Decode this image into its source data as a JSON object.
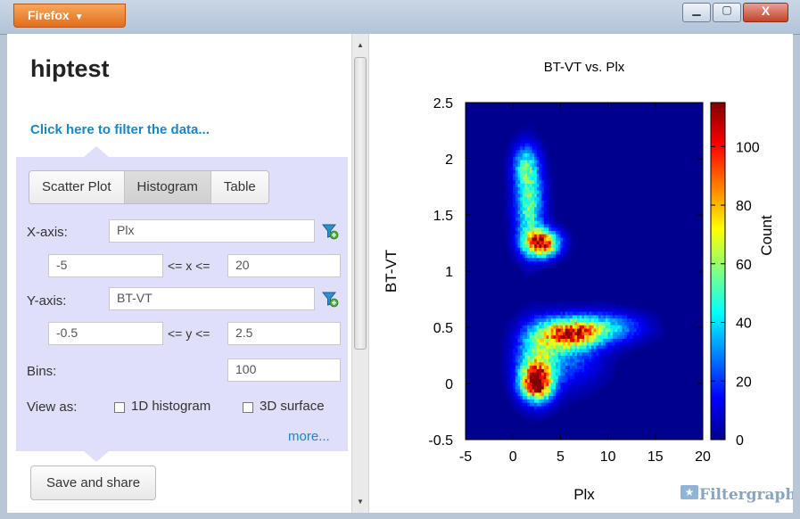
{
  "browser": {
    "menu_label": "Firefox",
    "min_glyph": "▁",
    "max_glyph": "▢",
    "close_glyph": "X"
  },
  "page": {
    "title": "hiptest",
    "filter_link": "Click here to filter the data..."
  },
  "tabs": [
    {
      "label": "Scatter Plot",
      "active": false
    },
    {
      "label": "Histogram",
      "active": true
    },
    {
      "label": "Table",
      "active": false
    }
  ],
  "form": {
    "xaxis_label": "X-axis:",
    "xaxis_value": "Plx",
    "xmin": "-5",
    "x_range_label": "<= x <=",
    "xmax": "20",
    "yaxis_label": "Y-axis:",
    "yaxis_value": "BT-VT",
    "ymin": "-0.5",
    "y_range_label": "<= y <=",
    "ymax": "2.5",
    "bins_label": "Bins:",
    "bins_value": "100",
    "viewas_label": "View as:",
    "opt_1d": "1D histogram",
    "opt_3d": "3D surface",
    "more_link": "more..."
  },
  "save_button": "Save and share",
  "branding": {
    "logo_text": "Filtergraph"
  },
  "chart_data": {
    "type": "heatmap",
    "title": "BT-VT vs. Plx",
    "xlabel": "Plx",
    "ylabel": "BT-VT",
    "xlim": [
      -5,
      20
    ],
    "ylim": [
      -0.5,
      2.5
    ],
    "bins": 100,
    "xticks": [
      "-5",
      "0",
      "5",
      "10",
      "15",
      "20"
    ],
    "yticks": [
      "-0.5",
      "0",
      "0.5",
      "1",
      "1.5",
      "2",
      "2.5"
    ],
    "colorbar": {
      "label": "Count",
      "range": [
        0,
        115
      ],
      "ticks": [
        "0",
        "20",
        "40",
        "60",
        "80",
        "100"
      ],
      "colors": [
        "#00008f",
        "#0000ff",
        "#0080ff",
        "#00ffff",
        "#80ff80",
        "#ffff00",
        "#ff8000",
        "#ff0000",
        "#800000"
      ]
    },
    "background_color": "#00008f",
    "clusters": [
      {
        "x": 3.0,
        "y": 1.25,
        "peak": 110,
        "sx": 1.2,
        "sy": 0.08
      },
      {
        "x": 1.7,
        "y": 1.6,
        "peak": 55,
        "sx": 1.0,
        "sy": 0.25
      },
      {
        "x": 1.3,
        "y": 1.95,
        "peak": 35,
        "sx": 0.9,
        "sy": 0.12
      },
      {
        "x": 6.0,
        "y": 0.45,
        "peak": 85,
        "sx": 2.2,
        "sy": 0.09
      },
      {
        "x": 10.0,
        "y": 0.5,
        "peak": 35,
        "sx": 2.5,
        "sy": 0.09
      },
      {
        "x": 2.5,
        "y": 0.0,
        "peak": 100,
        "sx": 1.1,
        "sy": 0.1
      },
      {
        "x": 2.5,
        "y": 0.2,
        "peak": 50,
        "sx": 1.4,
        "sy": 0.2
      },
      {
        "x": 5.5,
        "y": 0.25,
        "peak": 25,
        "sx": 2.5,
        "sy": 0.18
      }
    ]
  }
}
